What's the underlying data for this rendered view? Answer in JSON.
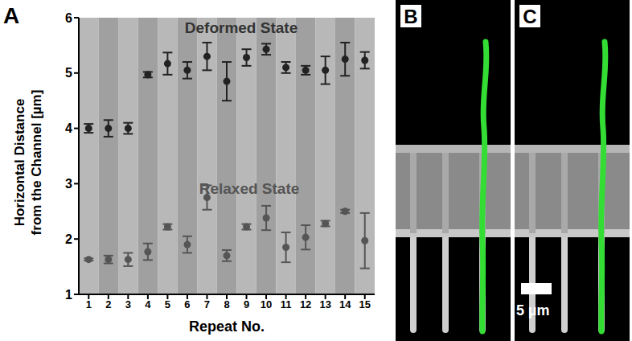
{
  "chart_data": {
    "type": "scatter",
    "x_label": "Repeat No.",
    "y_label": [
      "Horizontal Distance",
      "from the Channel [µm]"
    ],
    "x": [
      1,
      2,
      3,
      4,
      5,
      6,
      7,
      8,
      9,
      10,
      11,
      12,
      13,
      14,
      15
    ],
    "xlim": [
      0.5,
      15.5
    ],
    "xticks": [
      1,
      2,
      3,
      4,
      5,
      6,
      7,
      8,
      9,
      10,
      11,
      12,
      13,
      14,
      15
    ],
    "ylim": [
      1,
      6
    ],
    "yticks": [
      1,
      2,
      3,
      4,
      5,
      6
    ],
    "grid": false,
    "series": [
      {
        "name": "Deformed State",
        "color": "#222222",
        "marker": "circle",
        "values": [
          4.0,
          4.0,
          4.0,
          4.97,
          5.17,
          5.05,
          5.3,
          4.85,
          5.28,
          5.43,
          5.1,
          5.05,
          5.05,
          5.25,
          5.23
        ],
        "errors": [
          0.08,
          0.15,
          0.1,
          0.05,
          0.2,
          0.15,
          0.25,
          0.35,
          0.15,
          0.1,
          0.1,
          0.08,
          0.25,
          0.3,
          0.15
        ]
      },
      {
        "name": "Relaxed State",
        "color": "#555555",
        "marker": "circle",
        "values": [
          1.63,
          1.63,
          1.63,
          1.77,
          2.22,
          1.9,
          2.75,
          1.7,
          2.22,
          2.38,
          1.85,
          2.03,
          2.28,
          2.5,
          1.97
        ],
        "errors": [
          0.02,
          0.07,
          0.12,
          0.15,
          0.05,
          0.15,
          0.22,
          0.1,
          0.05,
          0.22,
          0.27,
          0.22,
          0.05,
          0.03,
          0.5
        ]
      }
    ]
  },
  "panel_label": "A",
  "images": [
    {
      "label": "B"
    },
    {
      "label": "C",
      "scale_bar": "5 µm"
    }
  ]
}
